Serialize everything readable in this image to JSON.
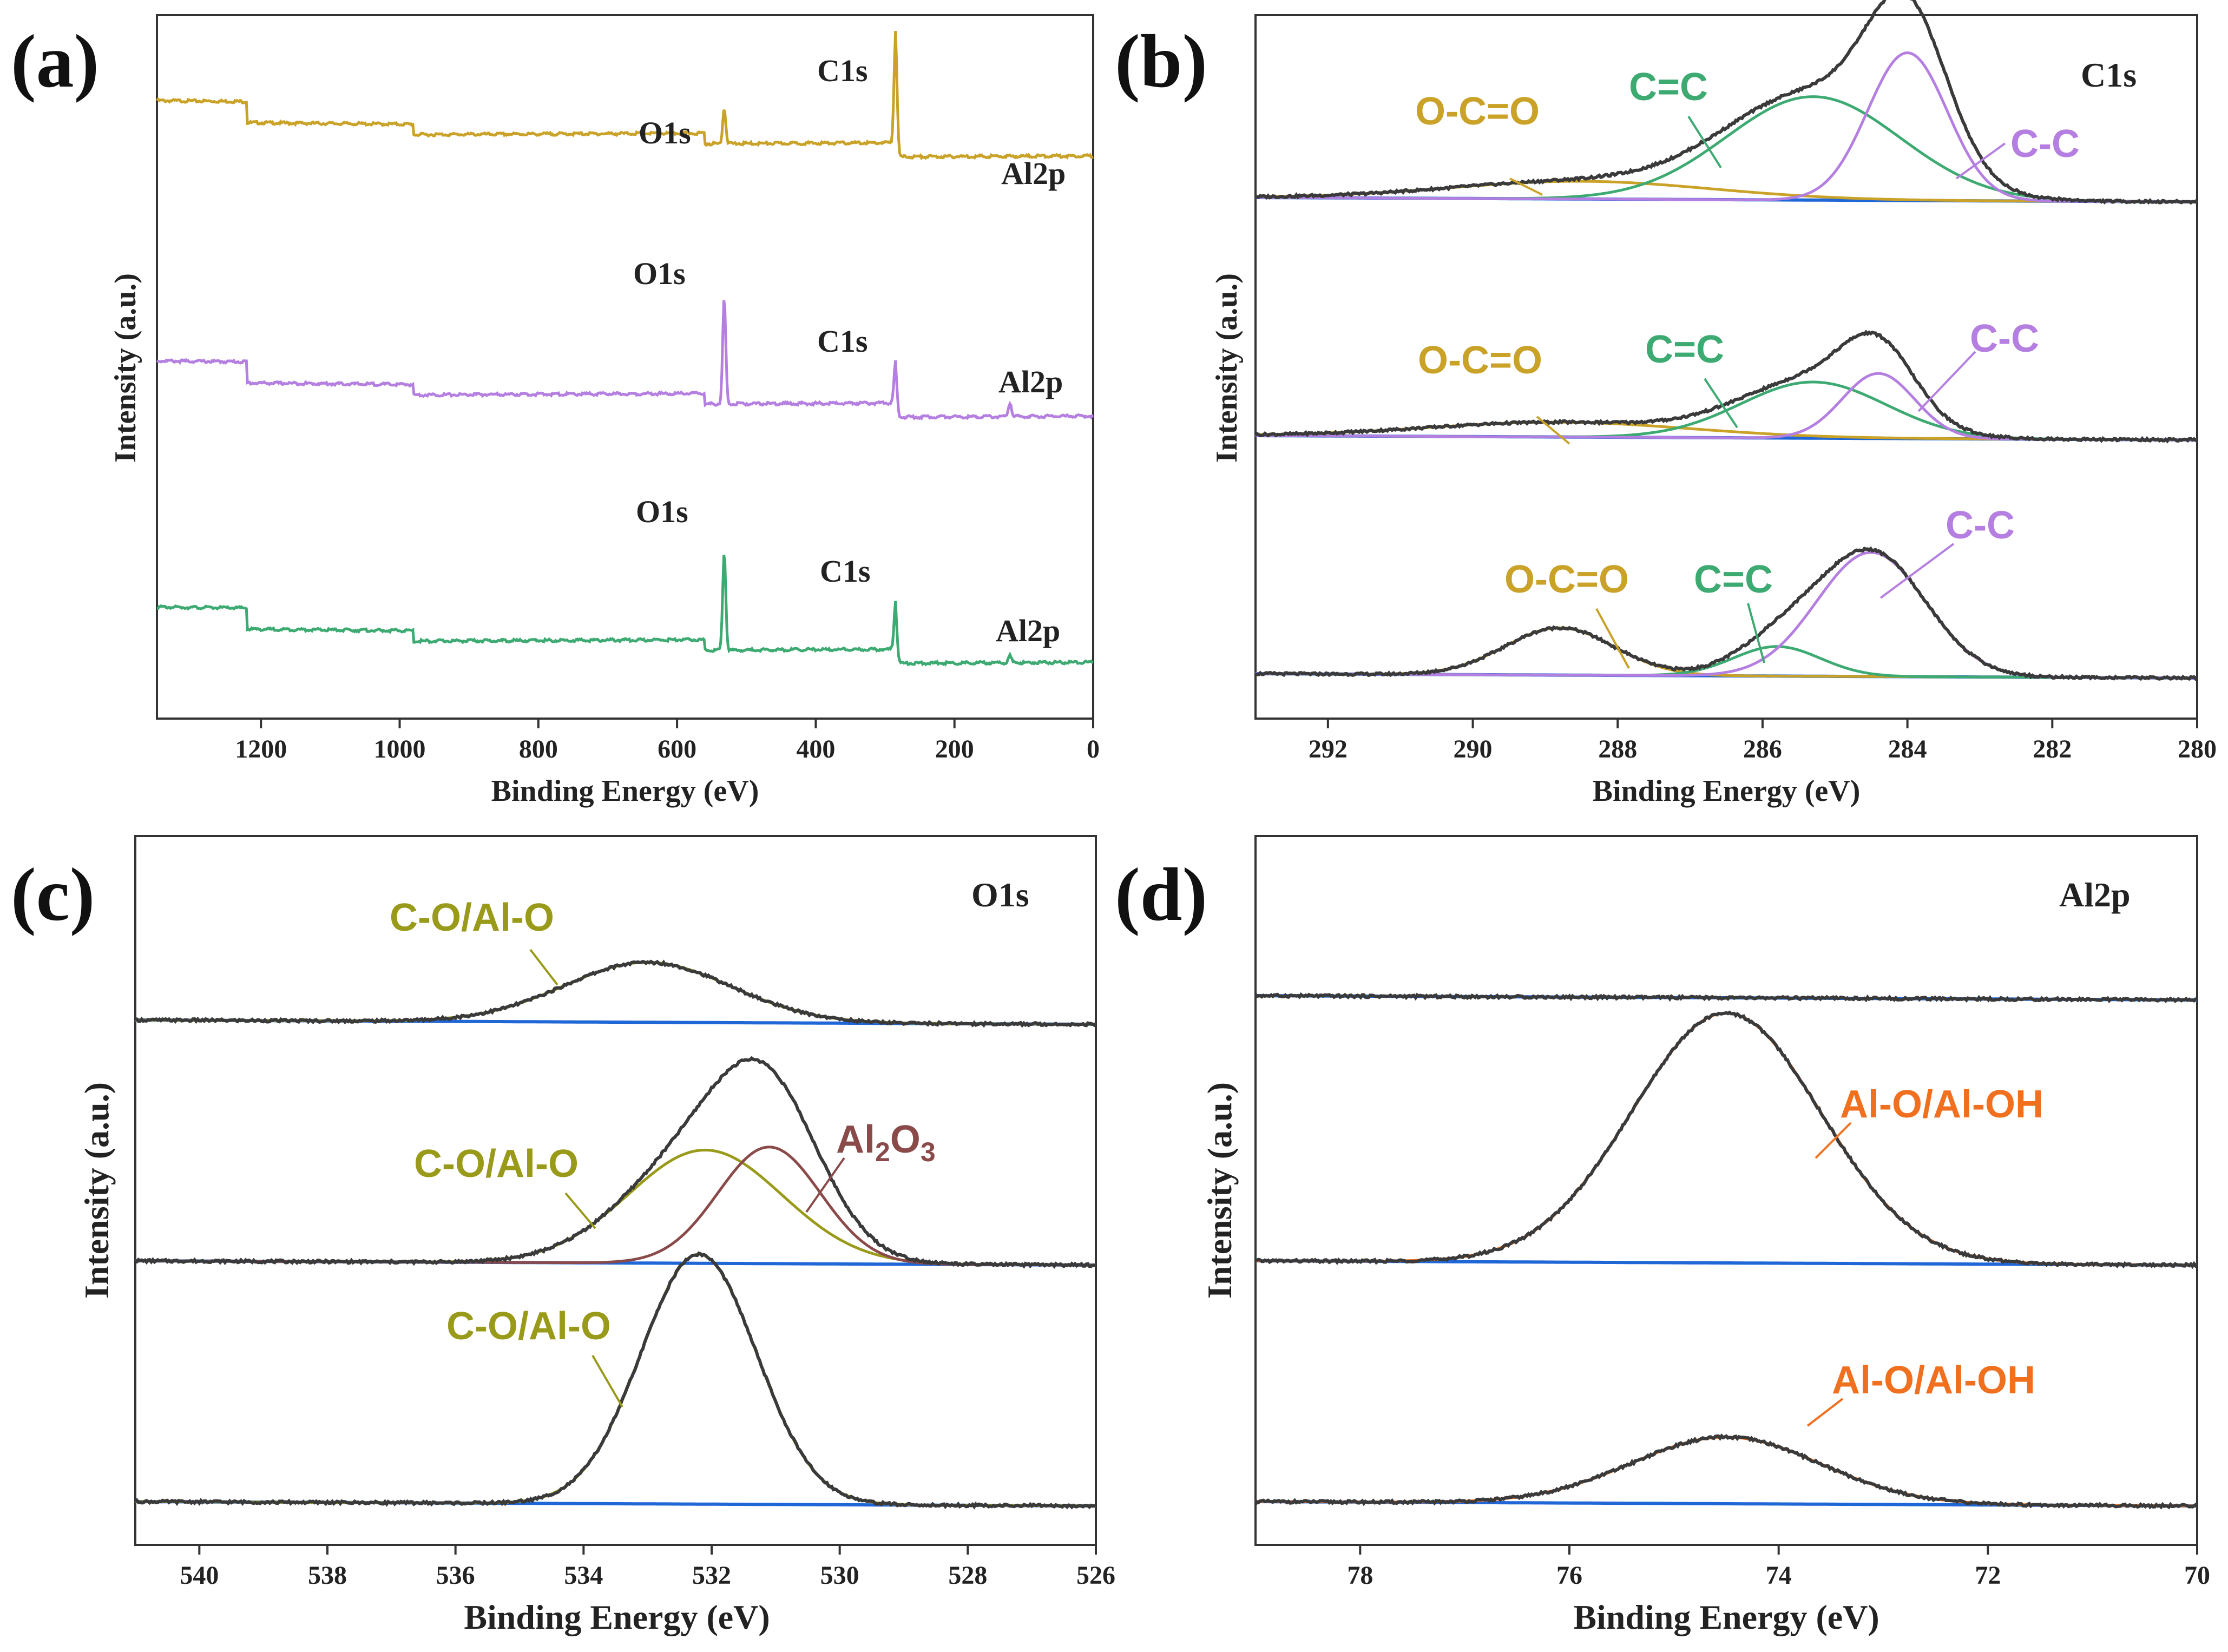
{
  "colors": {
    "gold": "#C9A227",
    "purple": "#B47FE0",
    "green": "#3DAA72",
    "blue": "#1F66D6",
    "black": "#3A3A3A",
    "olive": "#9A9A1A",
    "brown": "#8A4A4A",
    "orange": "#F07020"
  },
  "chart_data": [
    {
      "id": "a",
      "panel_label": "(a)",
      "type": "line",
      "xlabel": "Binding Energy (eV)",
      "ylabel": "Intensity (a.u.)",
      "xlim": [
        1350,
        0
      ],
      "xticks": [
        1200,
        1000,
        800,
        600,
        400,
        200,
        0
      ],
      "series": [
        {
          "name": "top",
          "color": "gold",
          "baseline": 0.82,
          "peaks": [
            {
              "label": "C1s",
              "x": 284.8,
              "h": 0.16
            },
            {
              "label": "O1s",
              "x": 532,
              "h": 0.05
            }
          ],
          "annotations": [
            {
              "text": "C1s",
              "x": 350
            },
            {
              "text": "O1s",
              "x": 600
            },
            {
              "text": "Al2p",
              "x": 80
            }
          ]
        },
        {
          "name": "middle",
          "color": "purple",
          "baseline": 0.45,
          "peaks": [
            {
              "label": "O1s",
              "x": 532,
              "h": 0.15
            },
            {
              "label": "C1s",
              "x": 284.8,
              "h": 0.06
            },
            {
              "label": "Al2p",
              "x": 120,
              "h": 0.02
            }
          ],
          "annotations": [
            {
              "text": "O1s",
              "x": 610
            },
            {
              "text": "C1s",
              "x": 350
            },
            {
              "text": "Al2p",
              "x": 80
            }
          ]
        },
        {
          "name": "bottom",
          "color": "green",
          "baseline": 0.1,
          "peaks": [
            {
              "label": "O1s",
              "x": 532,
              "h": 0.14
            },
            {
              "label": "C1s",
              "x": 284.8,
              "h": 0.07
            },
            {
              "label": "Al2p",
              "x": 120,
              "h": 0.01
            }
          ],
          "annotations": [
            {
              "text": "O1s",
              "x": 610
            },
            {
              "text": "C1s",
              "x": 350
            },
            {
              "text": "Al2p",
              "x": 80
            }
          ]
        }
      ]
    },
    {
      "id": "b",
      "panel_label": "(b)",
      "type": "line",
      "corner_label": "C1s",
      "xlabel": "Binding Energy (eV)",
      "ylabel": "Intensity (a.u.)",
      "xlim": [
        293,
        280
      ],
      "xticks": [
        292,
        290,
        288,
        286,
        284,
        282,
        280
      ],
      "stacks": [
        {
          "components": [
            {
              "label": "O-C=O",
              "center": 288.5,
              "height": 0.06,
              "width": 1.8,
              "color": "gold"
            },
            {
              "label": "C=C",
              "center": 285.3,
              "height": 0.35,
              "width": 1.2,
              "color": "green"
            },
            {
              "label": "C-C",
              "center": 284.0,
              "height": 0.5,
              "width": 0.55,
              "color": "purple"
            }
          ]
        },
        {
          "components": [
            {
              "label": "O-C=O",
              "center": 288.8,
              "height": 0.05,
              "width": 1.8,
              "color": "gold"
            },
            {
              "label": "C=C",
              "center": 285.3,
              "height": 0.19,
              "width": 1.0,
              "color": "green"
            },
            {
              "label": "C-C",
              "center": 284.4,
              "height": 0.22,
              "width": 0.5,
              "color": "purple"
            }
          ]
        },
        {
          "components": [
            {
              "label": "O-C=O",
              "center": 288.8,
              "height": 0.16,
              "width": 0.75,
              "color": "gold"
            },
            {
              "label": "C=C",
              "center": 285.8,
              "height": 0.1,
              "width": 0.6,
              "color": "green"
            },
            {
              "label": "C-C",
              "center": 284.5,
              "height": 0.42,
              "width": 0.75,
              "color": "purple"
            }
          ]
        }
      ]
    },
    {
      "id": "c",
      "panel_label": "(c)",
      "type": "line",
      "corner_label": "O1s",
      "xlabel": "Binding Energy (eV)",
      "ylabel": "Intensity (a.u.)",
      "xlim": [
        541,
        526
      ],
      "xticks": [
        540,
        538,
        536,
        534,
        532,
        530,
        528,
        526
      ],
      "stacks": [
        {
          "components": [
            {
              "label": "C-O/Al-O",
              "center": 533.0,
              "height": 0.18,
              "width": 1.3,
              "color": "olive"
            }
          ]
        },
        {
          "components": [
            {
              "label": "C-O/Al-O",
              "center": 532.1,
              "height": 0.34,
              "width": 1.2,
              "color": "olive"
            },
            {
              "label": "Al2O3",
              "center": 531.1,
              "height": 0.35,
              "width": 0.8,
              "color": "brown"
            }
          ]
        },
        {
          "components": [
            {
              "label": "C-O/Al-O",
              "center": 532.2,
              "height": 0.75,
              "width": 0.9,
              "color": "olive"
            }
          ]
        }
      ]
    },
    {
      "id": "d",
      "panel_label": "(d)",
      "type": "line",
      "corner_label": "Al2p",
      "xlabel": "Binding Energy (eV)",
      "ylabel": "Intensity (a.u.)",
      "xlim": [
        79,
        70
      ],
      "xticks": [
        78,
        76,
        74,
        72,
        70
      ],
      "stacks": [
        {
          "components": []
        },
        {
          "components": [
            {
              "label": "Al-O/Al-OH",
              "center": 74.5,
              "height": 0.75,
              "width": 0.9,
              "color": "orange"
            }
          ]
        },
        {
          "components": [
            {
              "label": "Al-O/Al-OH",
              "center": 74.5,
              "height": 0.2,
              "width": 0.9,
              "color": "orange"
            }
          ]
        }
      ]
    }
  ],
  "annotations": {
    "a": {
      "top": {
        "c1s": "C1s",
        "o1s": "O1s",
        "al2p": "Al2p"
      },
      "mid": {
        "c1s": "C1s",
        "o1s": "O1s",
        "al2p": "Al2p"
      },
      "bot": {
        "c1s": "C1s",
        "o1s": "O1s",
        "al2p": "Al2p"
      }
    },
    "b": [
      "O-C=O",
      "C=C",
      "C-C",
      "O-C=O",
      "C=C",
      "C-C",
      "O-C=O",
      "C=C",
      "C-C"
    ],
    "c": {
      "top": "C-O/Al-O",
      "mid": "C-O/Al-O",
      "mid_al2o3_main": "Al",
      "mid_al2o3_sub1": "2",
      "mid_al2o3_mid": "O",
      "mid_al2o3_sub2": "3",
      "bot": "C-O/Al-O"
    },
    "d": {
      "mid": "Al-O/Al-OH",
      "bot": "Al-O/Al-OH"
    }
  }
}
